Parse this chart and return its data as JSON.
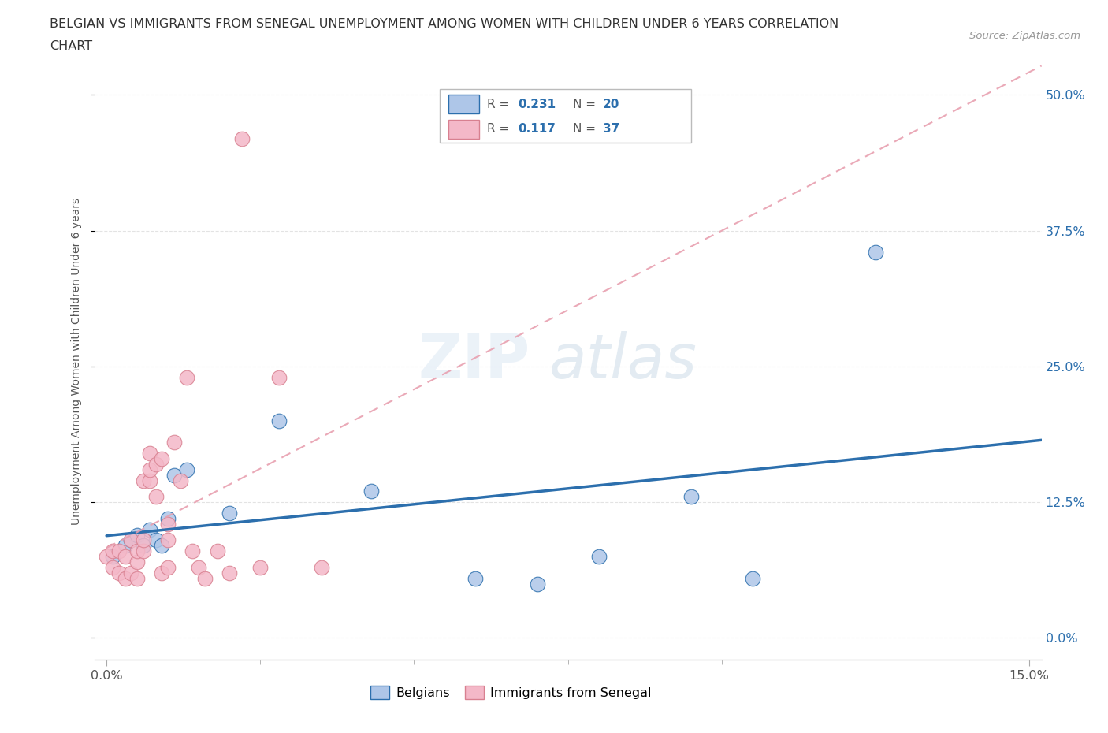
{
  "title_line1": "BELGIAN VS IMMIGRANTS FROM SENEGAL UNEMPLOYMENT AMONG WOMEN WITH CHILDREN UNDER 6 YEARS CORRELATION",
  "title_line2": "CHART",
  "source_text": "Source: ZipAtlas.com",
  "ylabel": "Unemployment Among Women with Children Under 6 years",
  "ytick_labels": [
    "0.0%",
    "12.5%",
    "25.0%",
    "37.5%",
    "50.0%"
  ],
  "ytick_values": [
    0.0,
    0.125,
    0.25,
    0.375,
    0.5
  ],
  "xlim": [
    -0.002,
    0.152
  ],
  "ylim": [
    -0.02,
    0.53
  ],
  "yplot_min": 0.0,
  "yplot_max": 0.5,
  "belgian_R": 0.231,
  "belgian_N": 20,
  "senegal_R": 0.117,
  "senegal_N": 37,
  "belgian_color": "#aec6e8",
  "senegal_color": "#f4b8c8",
  "belgian_line_color": "#2c6fad",
  "senegal_line_color": "#e8a0b0",
  "grid_color": "#dddddd",
  "belgian_x": [
    0.001,
    0.003,
    0.004,
    0.005,
    0.006,
    0.007,
    0.008,
    0.009,
    0.01,
    0.011,
    0.013,
    0.02,
    0.028,
    0.043,
    0.06,
    0.07,
    0.08,
    0.095,
    0.105,
    0.125
  ],
  "belgian_y": [
    0.075,
    0.085,
    0.09,
    0.095,
    0.085,
    0.1,
    0.09,
    0.085,
    0.11,
    0.15,
    0.155,
    0.115,
    0.2,
    0.135,
    0.055,
    0.05,
    0.075,
    0.13,
    0.055,
    0.355
  ],
  "senegal_x": [
    0.0,
    0.001,
    0.001,
    0.002,
    0.002,
    0.003,
    0.003,
    0.004,
    0.004,
    0.005,
    0.005,
    0.005,
    0.006,
    0.006,
    0.006,
    0.007,
    0.007,
    0.007,
    0.008,
    0.008,
    0.009,
    0.009,
    0.01,
    0.01,
    0.01,
    0.011,
    0.012,
    0.013,
    0.014,
    0.015,
    0.016,
    0.018,
    0.02,
    0.022,
    0.025,
    0.028,
    0.035
  ],
  "senegal_y": [
    0.075,
    0.065,
    0.08,
    0.06,
    0.08,
    0.055,
    0.075,
    0.06,
    0.09,
    0.055,
    0.07,
    0.08,
    0.08,
    0.09,
    0.145,
    0.145,
    0.155,
    0.17,
    0.13,
    0.16,
    0.165,
    0.06,
    0.09,
    0.065,
    0.105,
    0.18,
    0.145,
    0.24,
    0.08,
    0.065,
    0.055,
    0.08,
    0.06,
    0.46,
    0.065,
    0.24,
    0.065
  ]
}
